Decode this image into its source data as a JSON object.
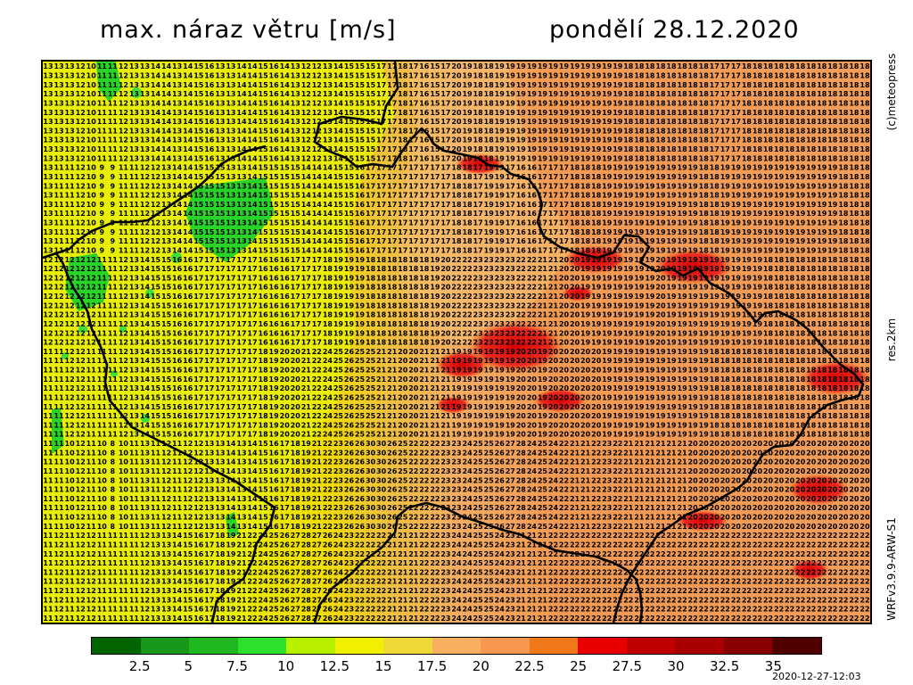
{
  "header": {
    "title": "max. náraz větru [m/s]",
    "date": "pondělí 28.12.2020"
  },
  "side_labels": {
    "copyright": "(c)meteopress",
    "resolution": "res.2km",
    "model": "WRFv3.9.9-ARW-S1"
  },
  "footer": {
    "timestamp": "2020-12-27-12:03"
  },
  "legend": {
    "colors": [
      "#006400",
      "#189818",
      "#20b820",
      "#2ce02c",
      "#b8f000",
      "#f0f000",
      "#f0d838",
      "#f8b060",
      "#f89850",
      "#f07818",
      "#e80000",
      "#c00000",
      "#a80000",
      "#880000",
      "#500000"
    ],
    "ticks": [
      "2.5",
      "5",
      "7.5",
      "10",
      "12.5",
      "15",
      "17.5",
      "20",
      "22.5",
      "25",
      "27.5",
      "30",
      "32.5",
      "35"
    ]
  },
  "map": {
    "grid_columns": 77,
    "grid_rows": 61,
    "sample_rows": [
      "13 13 13 12 10 11 11 12 13 13 14 14 13 14 15 16 13 13 14 14 15 16 14 13 12 12 13 14 15 15 15 17 17 18 17 16 15 17 20 19 18 18 19 19 19 19 19 19 19 19 19 19 19 19 18 18 18 18 18 18 18 18 17 17 17 18 18 18 18 18 18 18 18 18 18 18 18",
      "13 11 11 12 10 9 9 11 11 12 12 13 14 14 15 15 15 13 13 14 15 15 15 15 14 14 14 15 15 16 17 17 17 17 17 17 17 17 18 18 17 19 19 17 16 16 17 17 17 18 18 18 19 19 19 19 19 19 19 19 19 18 18 19 19 19 19 19 19 19 19 19 19 19 18 18 18",
      "12 12 12 12 12 11 11 12 13 14 15 15 16 16 17 17 17 17 17 17 16 16 16 17 17 17 18 19 19 19 18 18 18 18 18 18 19 20 22 22 23 23 23 23 22 22 21 21 20 20 19 19 19 19 19 19 19 20 19 19 19 19 19 19 19 19 19 18 18 18 18 18 18 18 18 18 18",
      "11 11 12 12 11 11 11 12 13 14 15 15 16 16 17 17 17 17 17 17 18 19 20 20 21 22 24 25 26 25 25 21 21 20 20 21 21 21 19 19 19 19 19 19 20 20 19 20 20 20 20 20 19 19 19 19 19 19 19 19 19 19 18 18 18 18 18 18 18 18 18 18 18 18 18 18 18",
      "11 11 10 12 11 10 8 10 11 13 11 12 11 12 12 13 13 14 13 14 15 16 17 18 19 21 22 23 26 26 30 30 26 25 22 22 22 23 23 24 25 25 26 27 28 24 25 24 22 21 21 22 23 22 21 21 21 21 21 21 20 20 20 20 20 20 20 20 20 20 20 20 20 20 20 20 20",
      "11 12 11 12 12 11 11 11 11 12 13 13 14 15 16 17 18 19 21 22 24 25 26 27 28 27 26 24 23 22 22 22 21 21 21 22 22 23 24 24 25 25 24 23 21 21 21 22 22 22 22 22 22 22 22 22 22 22 22 22 22 22 22 22 22 22 22 22 22 22 22 22 22 22 22 22 22"
    ]
  }
}
